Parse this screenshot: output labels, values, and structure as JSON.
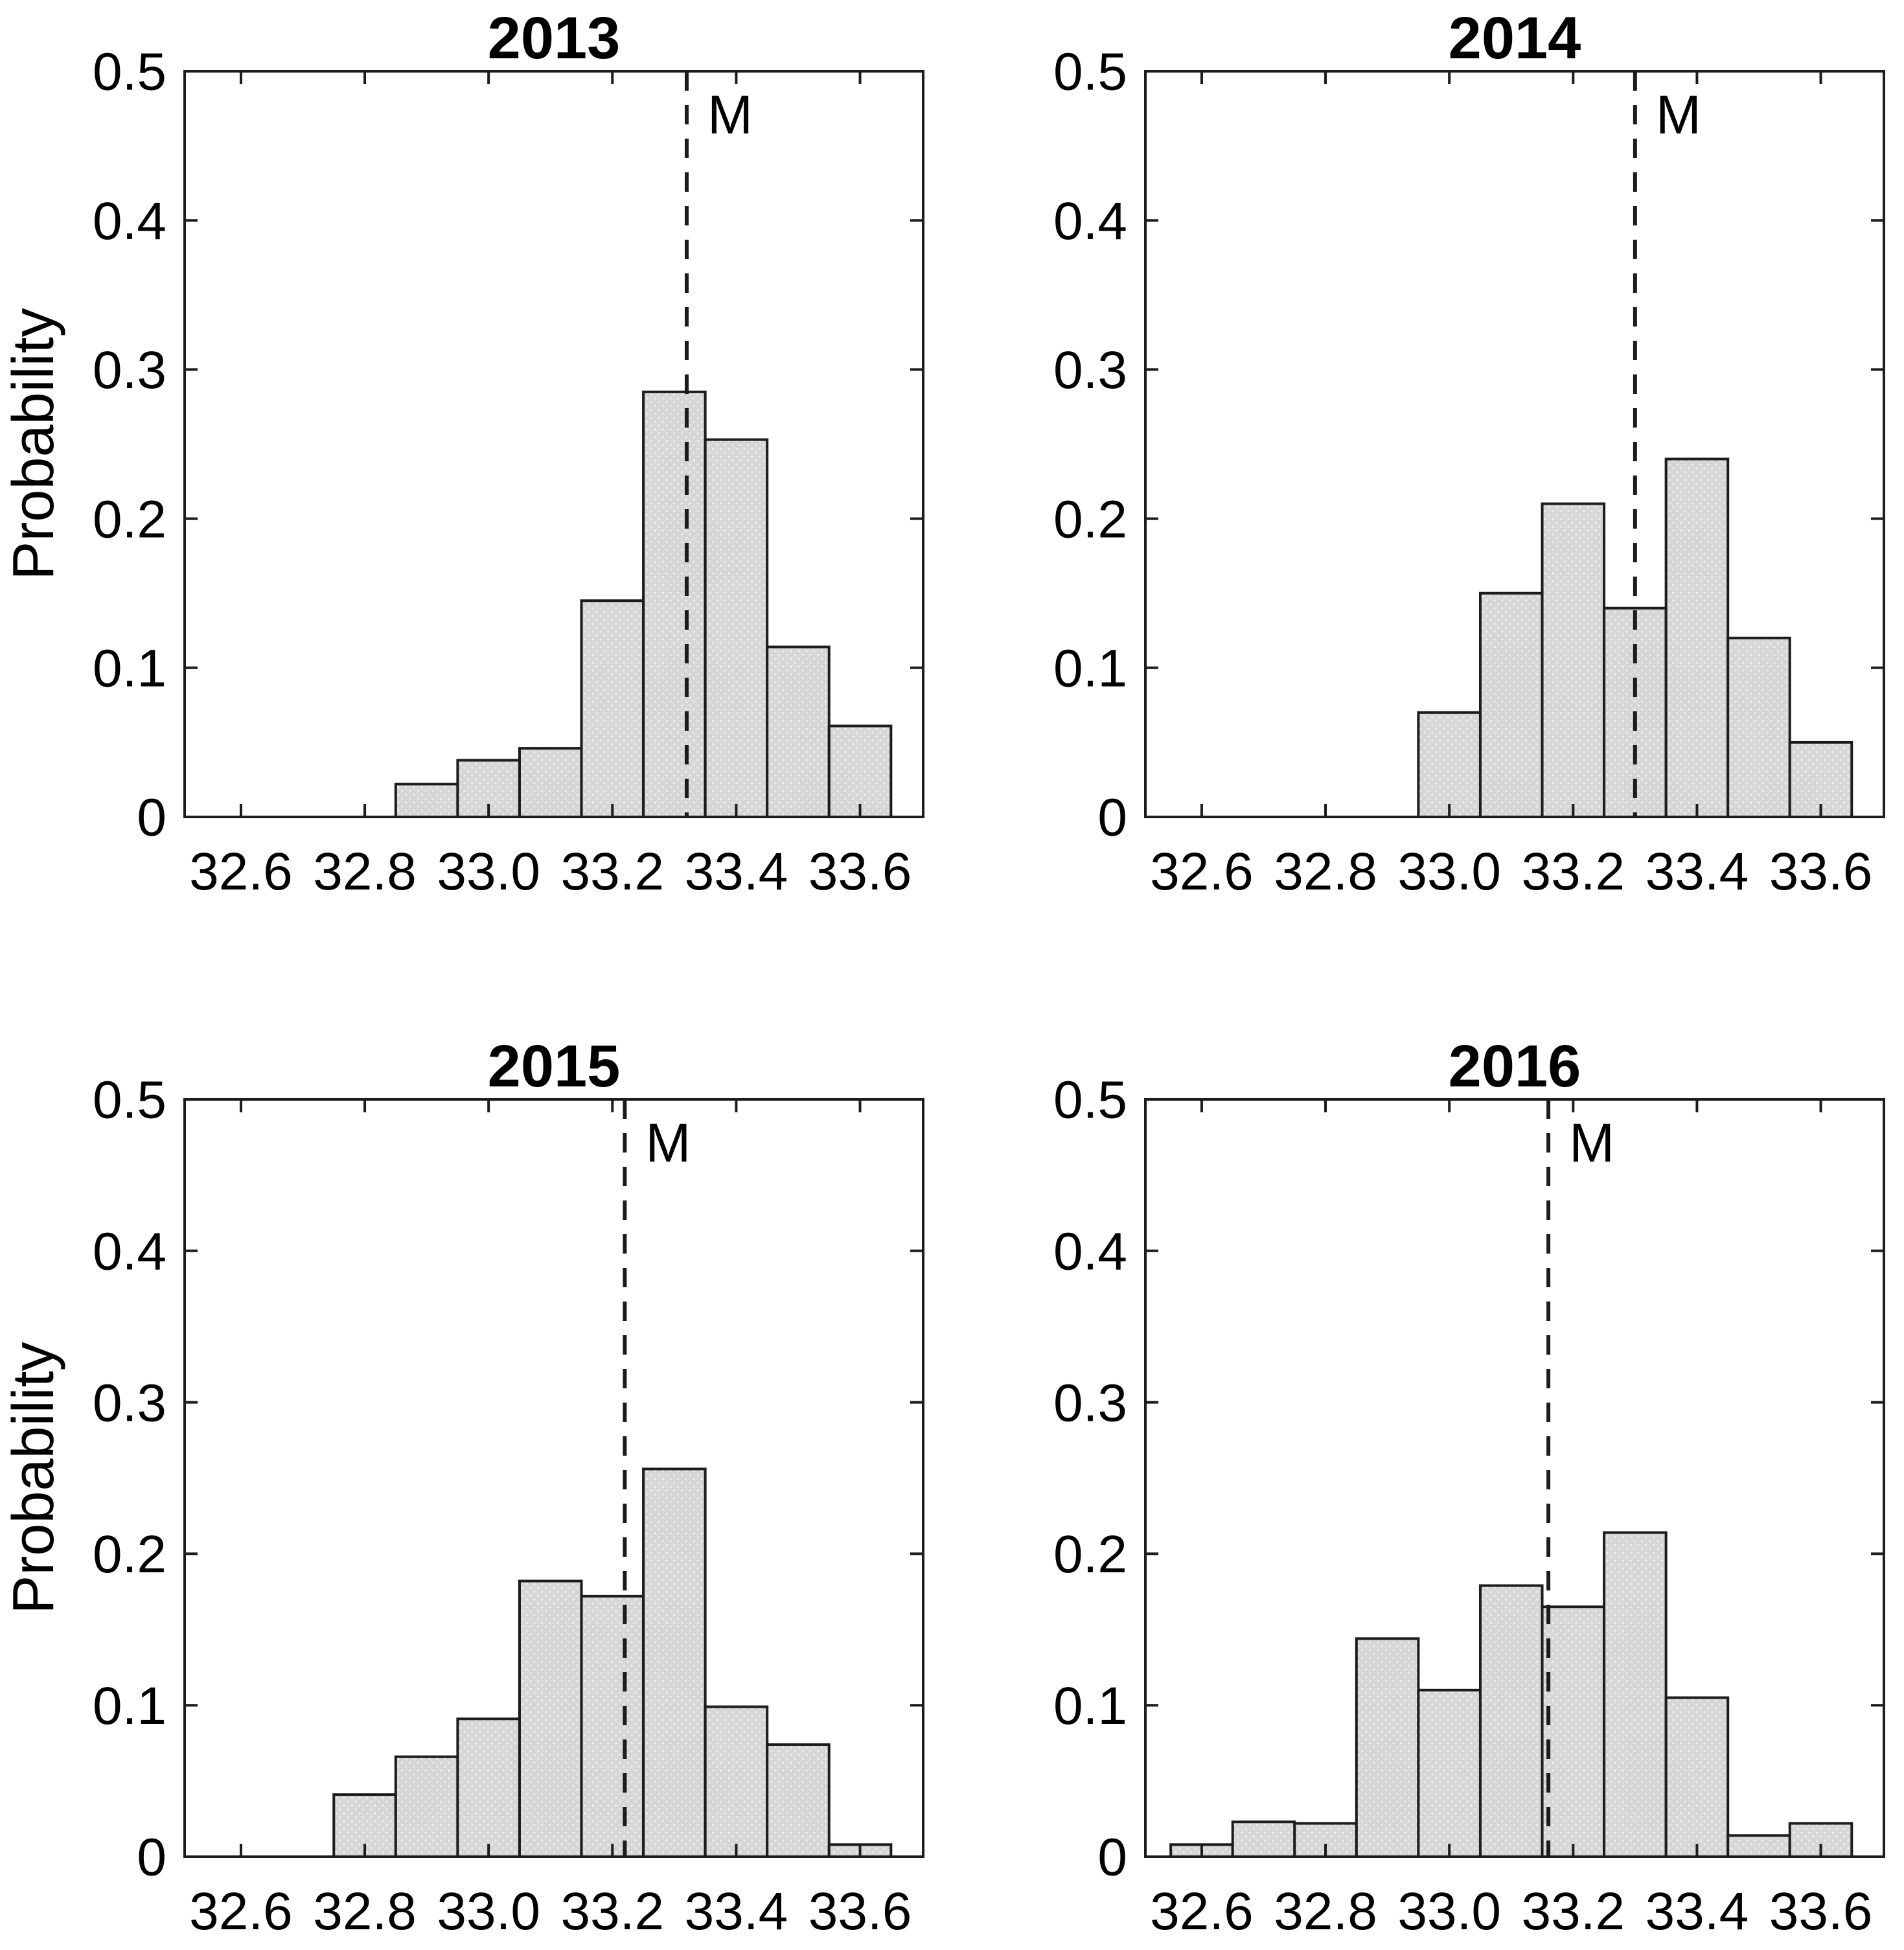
{
  "figure": {
    "background": "#ffffff",
    "ylabel": "Probability",
    "marker_label": "M"
  },
  "colors": {
    "bar_fill": "#d6d6d6",
    "bar_dot": "#ececec",
    "bar_edge": "#1c1c1c",
    "axis": "#1c1c1c",
    "dashed_line": "#1c1c1c",
    "text": "#000000"
  },
  "axes": {
    "xlim": [
      32.509,
      33.702
    ],
    "ylim": [
      0,
      0.5
    ],
    "xticks": [
      32.6,
      32.8,
      33.0,
      33.2,
      33.4,
      33.6
    ],
    "xtick_labels": [
      "32.6",
      "32.8",
      "33.0",
      "33.2",
      "33.4",
      "33.6"
    ],
    "yticks": [
      0,
      0.1,
      0.2,
      0.3,
      0.4,
      0.5
    ],
    "ytick_labels": [
      "0",
      "0.1",
      "0.2",
      "0.3",
      "0.4",
      "0.5"
    ],
    "grid": false
  },
  "chart_data": [
    {
      "type": "bar",
      "title": "2013",
      "position": "top-left",
      "show_ylabel": true,
      "bin_width": 0.1,
      "bin_centers": [
        32.9,
        33.0,
        33.1,
        33.2,
        33.3,
        33.4,
        33.5,
        33.6
      ],
      "values": [
        0.022,
        0.038,
        0.046,
        0.145,
        0.285,
        0.253,
        0.114,
        0.061
      ],
      "marker_value": 33.32,
      "xlabel": "",
      "ylabel": "Probability",
      "ylim": [
        0,
        0.5
      ]
    },
    {
      "type": "bar",
      "title": "2014",
      "position": "top-right",
      "show_ylabel": false,
      "bin_width": 0.1,
      "bin_centers": [
        33.0,
        33.1,
        33.2,
        33.3,
        33.4,
        33.5,
        33.6
      ],
      "values": [
        0.07,
        0.15,
        0.21,
        0.14,
        0.24,
        0.12,
        0.05
      ],
      "marker_value": 33.3,
      "xlabel": "",
      "ylabel": "Probability",
      "ylim": [
        0,
        0.5
      ]
    },
    {
      "type": "bar",
      "title": "2015",
      "position": "bottom-left",
      "show_ylabel": true,
      "bin_width": 0.1,
      "bin_centers": [
        32.8,
        32.9,
        33.0,
        33.1,
        33.2,
        33.3,
        33.4,
        33.5,
        33.6
      ],
      "values": [
        0.041,
        0.066,
        0.091,
        0.182,
        0.172,
        0.256,
        0.099,
        0.074,
        0.008
      ],
      "marker_value": 33.22,
      "xlabel": "",
      "ylabel": "Probability",
      "ylim": [
        0,
        0.5
      ]
    },
    {
      "type": "bar",
      "title": "2016",
      "position": "bottom-right",
      "show_ylabel": false,
      "bin_width": 0.1,
      "bin_centers": [
        32.6,
        32.7,
        32.8,
        32.9,
        33.0,
        33.1,
        33.2,
        33.3,
        33.4,
        33.5,
        33.6
      ],
      "values": [
        0.008,
        0.023,
        0.022,
        0.144,
        0.11,
        0.179,
        0.165,
        0.214,
        0.105,
        0.014,
        0.022
      ],
      "marker_value": 33.16,
      "xlabel": "",
      "ylabel": "Probability",
      "ylim": [
        0,
        0.5
      ]
    }
  ]
}
